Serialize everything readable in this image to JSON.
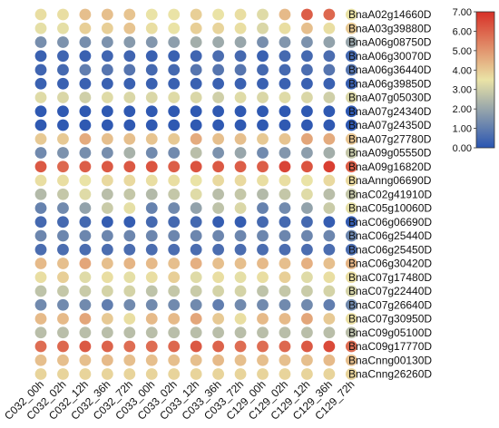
{
  "chart_data": {
    "type": "heatmap",
    "title": "",
    "xlabel": "",
    "ylabel": "",
    "columns": [
      "C032_00h",
      "C032_02h",
      "C032_12h",
      "C032_36h",
      "C032_72h",
      "C033_00h",
      "C033_02h",
      "C033_12h",
      "C033_36h",
      "C033_72h",
      "C129_00h",
      "C129_02h",
      "C129_12h",
      "C129_36h",
      "C129_72h"
    ],
    "rows": [
      "BnaA02g14660D",
      "BnaA03g39880D",
      "BnaA06g08750D",
      "BnaA06g30070D",
      "BnaA06g36440D",
      "BnaA06g39850D",
      "BnaA07g05030D",
      "BnaA07g24340D",
      "BnaA07g24350D",
      "BnaA07g27780D",
      "BnaA09g05550D",
      "BnaA09g16820D",
      "BnaAnng06690D",
      "BnaC02g41910D",
      "BnaC05g10060D",
      "BnaC06g06690D",
      "BnaC06g25440D",
      "BnaC06g25450D",
      "BnaC06g30420D",
      "BnaC07g17480D",
      "BnaC07g22440D",
      "BnaC07g26640D",
      "BnaC07g30950D",
      "BnaC09g05100D",
      "BnaC09g17770D",
      "BnaCnng00130D",
      "BnaCnng26260D"
    ],
    "values": [
      [
        3.6,
        3.6,
        4.2,
        4.2,
        4.1,
        3.5,
        3.5,
        3.9,
        3.5,
        3.6,
        3.3,
        4.3,
        6.1,
        5.9,
        3.5
      ],
      [
        3.4,
        3.4,
        3.9,
        3.9,
        4.1,
        3.6,
        3.5,
        3.9,
        3.8,
        3.6,
        3.2,
        3.6,
        4.2,
        3.6,
        4.0
      ],
      [
        1.4,
        1.5,
        1.4,
        1.5,
        1.7,
        1.6,
        1.8,
        2.2,
        2.1,
        2.0,
        1.4,
        1.6,
        1.5,
        1.9,
        2.0
      ],
      [
        0.3,
        0.4,
        0.3,
        0.4,
        0.4,
        0.3,
        0.3,
        0.4,
        0.6,
        0.5,
        0.3,
        0.5,
        0.5,
        0.6,
        0.5
      ],
      [
        0.4,
        0.5,
        1.0,
        0.8,
        0.8,
        0.5,
        0.5,
        0.8,
        0.8,
        0.8,
        0.5,
        0.5,
        0.6,
        0.8,
        0.8
      ],
      [
        0.3,
        0.3,
        0.3,
        0.3,
        0.3,
        0.3,
        0.3,
        0.3,
        0.3,
        0.3,
        0.3,
        0.3,
        0.3,
        0.3,
        0.3
      ],
      [
        3.3,
        3.2,
        3.0,
        3.3,
        3.2,
        3.2,
        3.3,
        3.2,
        3.0,
        3.3,
        3.2,
        3.3,
        3.2,
        3.0,
        3.2
      ],
      [
        0.1,
        0.1,
        0.1,
        0.1,
        0.1,
        0.1,
        0.1,
        0.1,
        0.1,
        0.1,
        0.1,
        0.1,
        0.1,
        0.1,
        0.1
      ],
      [
        0.1,
        0.1,
        0.1,
        0.1,
        0.1,
        0.1,
        0.1,
        0.1,
        0.1,
        0.1,
        0.1,
        0.1,
        0.1,
        0.1,
        0.1
      ],
      [
        4.0,
        4.0,
        4.6,
        4.2,
        4.2,
        4.1,
        4.0,
        4.6,
        4.2,
        4.2,
        4.0,
        4.1,
        4.7,
        4.6,
        4.1
      ],
      [
        1.3,
        1.5,
        1.4,
        1.4,
        2.3,
        1.3,
        1.3,
        2.6,
        1.5,
        2.0,
        1.3,
        1.6,
        1.8,
        2.2,
        2.8
      ],
      [
        6.2,
        5.9,
        6.1,
        6.2,
        6.2,
        6.3,
        6.1,
        6.3,
        6.2,
        6.1,
        6.1,
        6.6,
        6.3,
        6.7,
        6.1
      ],
      [
        3.6,
        3.6,
        3.5,
        3.7,
        3.7,
        3.6,
        3.6,
        3.5,
        3.7,
        3.7,
        3.6,
        3.6,
        3.5,
        3.7,
        3.7
      ],
      [
        2.5,
        2.8,
        3.3,
        2.6,
        2.8,
        2.5,
        2.8,
        3.3,
        2.6,
        2.8,
        2.5,
        2.8,
        3.3,
        2.6,
        2.8
      ],
      [
        1.1,
        1.3,
        1.9,
        2.9,
        3.4,
        1.1,
        1.3,
        1.9,
        2.7,
        3.2,
        1.1,
        1.3,
        1.9,
        2.9,
        3.4
      ],
      [
        0.5,
        0.5,
        0.5,
        0.2,
        0.2,
        0.5,
        0.5,
        0.5,
        0.2,
        0.2,
        0.5,
        0.5,
        0.5,
        0.2,
        0.2
      ],
      [
        1.2,
        1.2,
        1.2,
        1.2,
        1.2,
        1.2,
        1.2,
        1.2,
        1.2,
        1.2,
        1.2,
        1.2,
        1.2,
        1.2,
        1.2
      ],
      [
        0.6,
        0.6,
        0.6,
        0.6,
        0.6,
        0.6,
        0.6,
        0.6,
        0.6,
        0.6,
        0.6,
        0.6,
        0.6,
        0.6,
        0.6
      ],
      [
        4.3,
        4.2,
        4.7,
        4.2,
        4.4,
        4.3,
        4.2,
        4.5,
        4.2,
        4.2,
        4.3,
        4.2,
        4.5,
        4.2,
        4.4
      ],
      [
        3.6,
        3.9,
        3.3,
        3.6,
        3.4,
        3.6,
        3.9,
        3.3,
        3.6,
        3.4,
        3.6,
        3.9,
        3.3,
        3.6,
        3.6
      ],
      [
        2.7,
        2.8,
        2.9,
        3.1,
        3.1,
        2.7,
        2.8,
        2.9,
        3.1,
        3.1,
        2.7,
        2.8,
        2.9,
        3.1,
        3.1
      ],
      [
        1.3,
        1.3,
        1.3,
        1.0,
        1.3,
        1.3,
        1.3,
        1.3,
        1.0,
        1.3,
        1.3,
        1.3,
        1.3,
        1.0,
        1.3
      ],
      [
        4.3,
        4.3,
        4.7,
        4.0,
        3.6,
        4.3,
        4.3,
        4.7,
        4.0,
        3.6,
        4.3,
        4.3,
        4.7,
        4.0,
        3.6
      ],
      [
        2.6,
        2.6,
        2.6,
        2.6,
        2.6,
        2.6,
        2.6,
        2.6,
        2.6,
        2.6,
        2.6,
        2.6,
        2.6,
        2.6,
        2.6
      ],
      [
        5.8,
        5.9,
        6.2,
        6.0,
        5.8,
        5.8,
        5.9,
        6.2,
        6.0,
        5.8,
        5.8,
        5.9,
        6.2,
        6.5,
        5.8
      ],
      [
        4.2,
        4.2,
        4.2,
        4.3,
        4.2,
        4.2,
        4.2,
        4.2,
        4.3,
        4.2,
        4.2,
        4.2,
        4.2,
        4.3,
        4.2
      ],
      [
        3.8,
        3.8,
        3.8,
        3.8,
        3.8,
        3.8,
        3.8,
        3.8,
        3.8,
        3.8,
        3.8,
        3.8,
        3.8,
        3.8,
        3.8
      ]
    ],
    "color_scale": {
      "min": 0.0,
      "max": 7.0,
      "stops": [
        "#2a55b2",
        "#eae3a6",
        "#d73027"
      ],
      "ticks": [
        "0.00",
        "1.00",
        "2.00",
        "3.00",
        "4.00",
        "5.00",
        "6.00",
        "7.00"
      ]
    },
    "legend_position": "top-right",
    "grid": false
  }
}
